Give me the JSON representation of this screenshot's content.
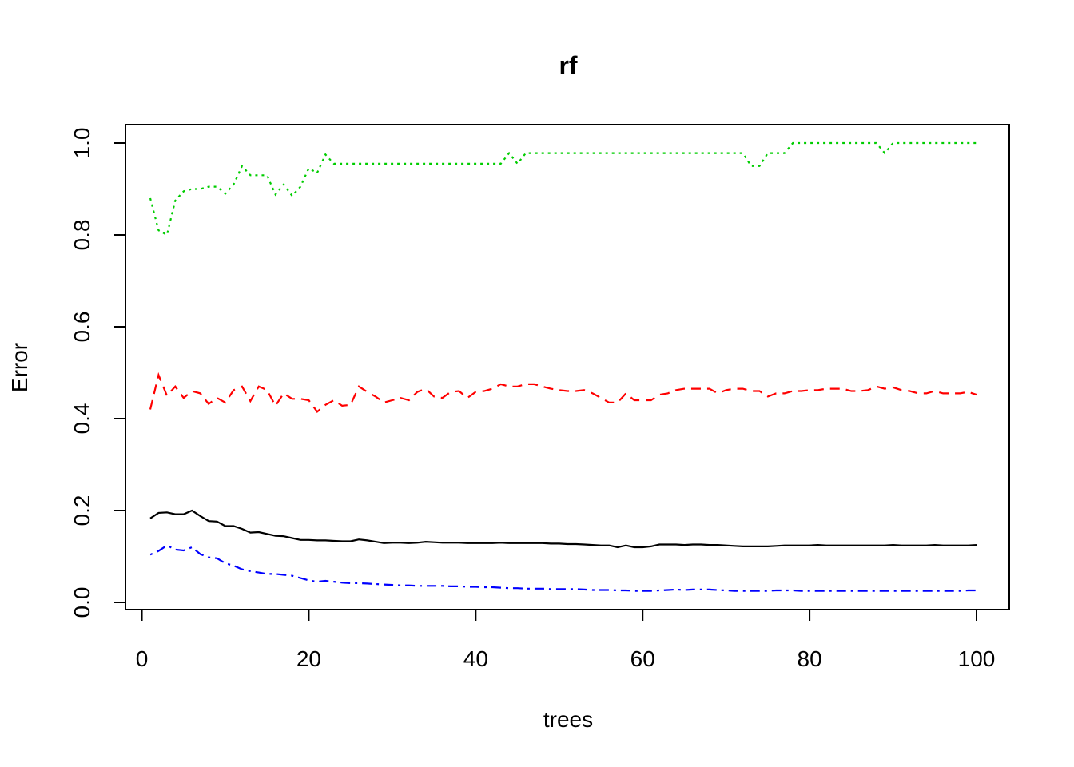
{
  "chart_data": {
    "type": "line",
    "title": "rf",
    "xlabel": "trees",
    "ylabel": "Error",
    "xlim": [
      1,
      100
    ],
    "ylim": [
      0.0,
      1.0
    ],
    "x_ticks": [
      0,
      20,
      40,
      60,
      80,
      100
    ],
    "y_ticks": [
      0.0,
      0.2,
      0.4,
      0.6,
      0.8,
      1.0
    ],
    "grid": false,
    "series": [
      {
        "color": "#000000",
        "style": "solid",
        "values": [
          0.183,
          0.195,
          0.196,
          0.192,
          0.192,
          0.2,
          0.188,
          0.177,
          0.176,
          0.166,
          0.166,
          0.16,
          0.152,
          0.153,
          0.149,
          0.145,
          0.144,
          0.14,
          0.136,
          0.136,
          0.135,
          0.135,
          0.134,
          0.133,
          0.133,
          0.137,
          0.135,
          0.132,
          0.129,
          0.13,
          0.13,
          0.129,
          0.13,
          0.132,
          0.131,
          0.13,
          0.13,
          0.13,
          0.129,
          0.129,
          0.129,
          0.129,
          0.13,
          0.129,
          0.129,
          0.129,
          0.129,
          0.129,
          0.128,
          0.128,
          0.127,
          0.127,
          0.126,
          0.125,
          0.124,
          0.124,
          0.12,
          0.124,
          0.12,
          0.12,
          0.122,
          0.126,
          0.126,
          0.126,
          0.125,
          0.126,
          0.126,
          0.125,
          0.125,
          0.124,
          0.123,
          0.122,
          0.122,
          0.122,
          0.122,
          0.123,
          0.124,
          0.124,
          0.124,
          0.124,
          0.125,
          0.124,
          0.124,
          0.124,
          0.124,
          0.124,
          0.124,
          0.124,
          0.124,
          0.125,
          0.124,
          0.124,
          0.124,
          0.124,
          0.125,
          0.124,
          0.124,
          0.124,
          0.124,
          0.125
        ]
      },
      {
        "color": "#ff0000",
        "style": "dashed",
        "values": [
          0.42,
          0.495,
          0.45,
          0.47,
          0.445,
          0.46,
          0.455,
          0.432,
          0.445,
          0.435,
          0.462,
          0.47,
          0.438,
          0.47,
          0.462,
          0.428,
          0.455,
          0.443,
          0.443,
          0.44,
          0.415,
          0.43,
          0.44,
          0.428,
          0.43,
          0.47,
          0.458,
          0.448,
          0.435,
          0.44,
          0.445,
          0.44,
          0.458,
          0.465,
          0.448,
          0.445,
          0.458,
          0.46,
          0.445,
          0.458,
          0.46,
          0.465,
          0.475,
          0.47,
          0.47,
          0.475,
          0.475,
          0.47,
          0.465,
          0.462,
          0.46,
          0.46,
          0.462,
          0.455,
          0.445,
          0.435,
          0.435,
          0.455,
          0.44,
          0.44,
          0.44,
          0.452,
          0.455,
          0.462,
          0.465,
          0.465,
          0.465,
          0.465,
          0.455,
          0.462,
          0.465,
          0.465,
          0.46,
          0.46,
          0.448,
          0.455,
          0.455,
          0.46,
          0.46,
          0.462,
          0.462,
          0.465,
          0.465,
          0.465,
          0.46,
          0.46,
          0.462,
          0.47,
          0.465,
          0.468,
          0.462,
          0.46,
          0.455,
          0.455,
          0.46,
          0.455,
          0.455,
          0.455,
          0.458,
          0.452
        ]
      },
      {
        "color": "#00cd00",
        "style": "dotted",
        "values": [
          0.88,
          0.81,
          0.8,
          0.875,
          0.895,
          0.9,
          0.9,
          0.905,
          0.905,
          0.89,
          0.91,
          0.95,
          0.93,
          0.93,
          0.93,
          0.888,
          0.91,
          0.885,
          0.905,
          0.945,
          0.935,
          0.975,
          0.955,
          0.955,
          0.955,
          0.955,
          0.955,
          0.955,
          0.955,
          0.955,
          0.955,
          0.955,
          0.955,
          0.955,
          0.955,
          0.955,
          0.955,
          0.955,
          0.955,
          0.955,
          0.955,
          0.955,
          0.955,
          0.978,
          0.955,
          0.978,
          0.978,
          0.978,
          0.978,
          0.978,
          0.978,
          0.978,
          0.978,
          0.978,
          0.978,
          0.978,
          0.978,
          0.978,
          0.978,
          0.978,
          0.978,
          0.978,
          0.978,
          0.978,
          0.978,
          0.978,
          0.978,
          0.978,
          0.978,
          0.978,
          0.978,
          0.978,
          0.95,
          0.95,
          0.978,
          0.978,
          0.978,
          1.0,
          1.0,
          1.0,
          1.0,
          1.0,
          1.0,
          1.0,
          1.0,
          1.0,
          1.0,
          1.0,
          0.978,
          1.0,
          1.0,
          1.0,
          1.0,
          1.0,
          1.0,
          1.0,
          1.0,
          1.0,
          1.0,
          1.0
        ]
      },
      {
        "color": "#0000ff",
        "style": "dotdash",
        "values": [
          0.104,
          0.112,
          0.124,
          0.115,
          0.113,
          0.12,
          0.105,
          0.098,
          0.096,
          0.085,
          0.08,
          0.072,
          0.068,
          0.065,
          0.062,
          0.062,
          0.06,
          0.058,
          0.053,
          0.048,
          0.045,
          0.047,
          0.045,
          0.043,
          0.042,
          0.042,
          0.041,
          0.04,
          0.039,
          0.038,
          0.037,
          0.037,
          0.036,
          0.036,
          0.036,
          0.036,
          0.035,
          0.035,
          0.034,
          0.034,
          0.033,
          0.033,
          0.032,
          0.031,
          0.031,
          0.03,
          0.03,
          0.03,
          0.029,
          0.029,
          0.029,
          0.029,
          0.028,
          0.027,
          0.027,
          0.027,
          0.026,
          0.026,
          0.025,
          0.025,
          0.025,
          0.026,
          0.027,
          0.028,
          0.027,
          0.028,
          0.028,
          0.028,
          0.027,
          0.026,
          0.025,
          0.025,
          0.025,
          0.025,
          0.025,
          0.026,
          0.026,
          0.026,
          0.025,
          0.025,
          0.025,
          0.025,
          0.025,
          0.025,
          0.025,
          0.025,
          0.025,
          0.025,
          0.025,
          0.025,
          0.025,
          0.025,
          0.025,
          0.025,
          0.025,
          0.025,
          0.025,
          0.025,
          0.026,
          0.026
        ]
      }
    ]
  }
}
